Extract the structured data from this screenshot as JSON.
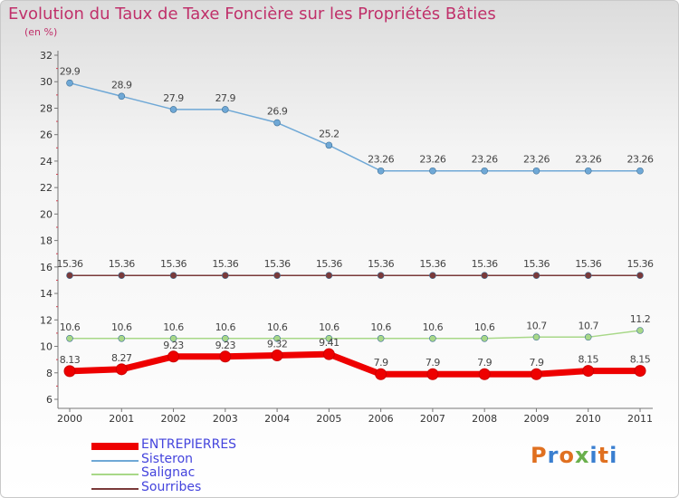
{
  "header": {
    "title": "Evolution du Taux de Taxe Foncière sur les Propriétés Bâties",
    "subtitle": "(en %)"
  },
  "logo": {
    "text": "Proxiti",
    "colors": [
      "#e07020",
      "#3a7fd0",
      "#e07020",
      "#6ab04c",
      "#3a7fd0",
      "#e07020",
      "#3a7fd0"
    ]
  },
  "chart_data": {
    "type": "line",
    "title": "Evolution du Taux de Taxe Foncière sur les Propriétés Bâties",
    "subtitle": "(en %)",
    "ylim": [
      6,
      32
    ],
    "yticks": [
      6,
      8,
      10,
      12,
      14,
      16,
      18,
      20,
      22,
      24,
      26,
      28,
      30,
      32
    ],
    "x": [
      "2000",
      "2001",
      "2002",
      "2003",
      "2004",
      "2005",
      "2006",
      "2007",
      "2008",
      "2009",
      "2010",
      "2011"
    ],
    "grid": false,
    "legend_position": "bottom-left",
    "series": [
      {
        "name": "ENTREPIERRES",
        "color": "#ee0000",
        "values": [
          8.13,
          8.27,
          9.23,
          9.23,
          9.32,
          9.41,
          7.9,
          7.9,
          7.9,
          7.9,
          8.15,
          8.15
        ],
        "labels": [
          "8.13",
          "8.27",
          "9.23",
          "9.23",
          "9.32",
          "9.41",
          "7.9",
          "7.9",
          "7.9",
          "7.9",
          "8.15",
          "8.15"
        ]
      },
      {
        "name": "Sisteron",
        "color": "#6fa8d6",
        "values": [
          29.9,
          28.9,
          27.9,
          27.9,
          26.9,
          25.2,
          23.26,
          23.26,
          23.26,
          23.26,
          23.26,
          23.26
        ],
        "labels": [
          "29.9",
          "28.9",
          "27.9",
          "27.9",
          "26.9",
          "25.2",
          "23.26",
          "23.26",
          "23.26",
          "23.26",
          "23.26",
          "23.26"
        ]
      },
      {
        "name": "Salignac",
        "color": "#a8d888",
        "values": [
          10.6,
          10.6,
          10.6,
          10.6,
          10.6,
          10.6,
          10.6,
          10.6,
          10.6,
          10.7,
          10.7,
          11.2
        ],
        "labels": [
          "10.6",
          "10.6",
          "10.6",
          "10.6",
          "10.6",
          "10.6",
          "10.6",
          "10.6",
          "10.6",
          "10.7",
          "10.7",
          "11.2"
        ]
      },
      {
        "name": "Sourribes",
        "color": "#7a3a3a",
        "values": [
          15.36,
          15.36,
          15.36,
          15.36,
          15.36,
          15.36,
          15.36,
          15.36,
          15.36,
          15.36,
          15.36,
          15.36
        ],
        "labels": [
          "15.36",
          "15.36",
          "15.36",
          "15.36",
          "15.36",
          "15.36",
          "15.36",
          "15.36",
          "15.36",
          "15.36",
          "15.36",
          "15.36"
        ]
      }
    ]
  }
}
